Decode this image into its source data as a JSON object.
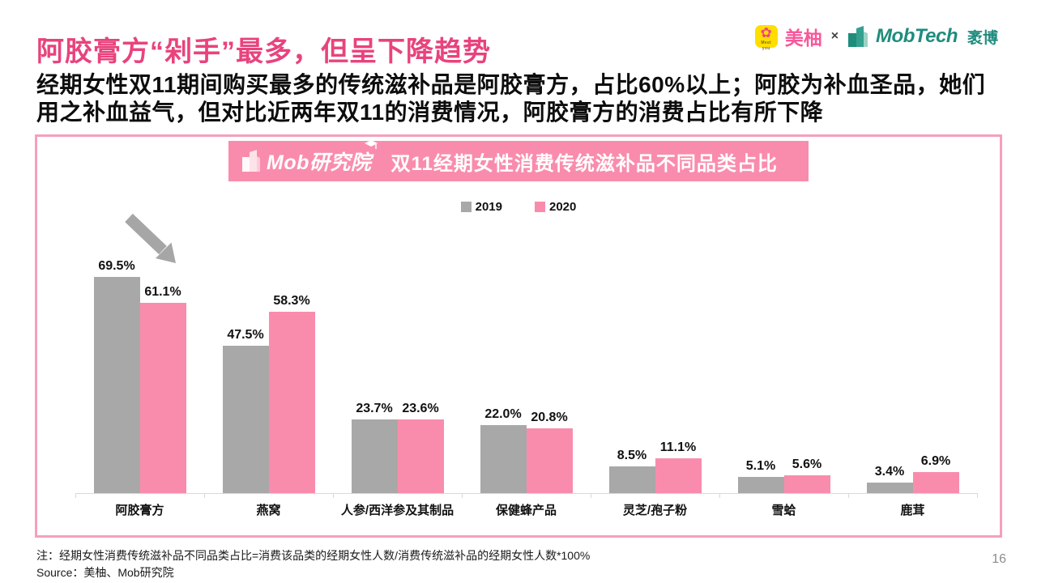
{
  "header": {
    "title": "阿胶膏方“剁手”最多，但呈下降趋势",
    "subtitle": "经期女性双11期间购买最多的传统滋补品是阿胶膏方，占比60%以上；阿胶为补血圣品，她们用之补血益气，但对比近两年双11的消费情况，阿胶膏方的消费占比有所下降"
  },
  "brand": {
    "meiyou_label": "美柚",
    "meiyou_small_text": "Meet you",
    "meiyou_flower_icon": "✿",
    "separator": "×",
    "mobtech_label": "MobTech",
    "maobo_label": "袤博"
  },
  "chart_data": {
    "type": "bar",
    "title": "双11经期女性消费传统滋补品不同品类占比",
    "logo_text": "Mob研究院",
    "categories": [
      "阿胶膏方",
      "燕窝",
      "人参/西洋参及其制品",
      "保健蜂产品",
      "灵芝/孢子粉",
      "雪蛤",
      "鹿茸"
    ],
    "series": [
      {
        "name": "2019",
        "color": "#A8A8A8",
        "values": [
          69.5,
          47.5,
          23.7,
          22.0,
          8.5,
          5.1,
          3.4
        ]
      },
      {
        "name": "2020",
        "color": "#F98CAC",
        "values": [
          61.1,
          58.3,
          23.6,
          20.8,
          11.1,
          5.6,
          6.9
        ]
      }
    ],
    "value_suffix": "%",
    "ylim": [
      0,
      72
    ],
    "grid": false,
    "legend_position": "top",
    "annotation": "downward-trend-arrow over first category"
  },
  "colors": {
    "title_pink": "#E8437C",
    "panel_border_pink": "#F5A0BC",
    "banner_pink": "#F98CAC",
    "bar_gray": "#A8A8A8",
    "bar_pink": "#F98CAC",
    "axis_gray": "#D9D9D9",
    "arrow_gray": "#A6A6A6",
    "mobtech_teal": "#1F8C7C",
    "meiyou_yellow": "#FFDE00",
    "meiyou_pink": "#F7599B"
  },
  "footer": {
    "note": "注：经期女性消费传统滋补品不同品类占比=消费该品类的经期女性人数/消费传统滋补品的经期女性人数*100%",
    "source": "Source：美柚、Mob研究院",
    "page_number": "16"
  }
}
